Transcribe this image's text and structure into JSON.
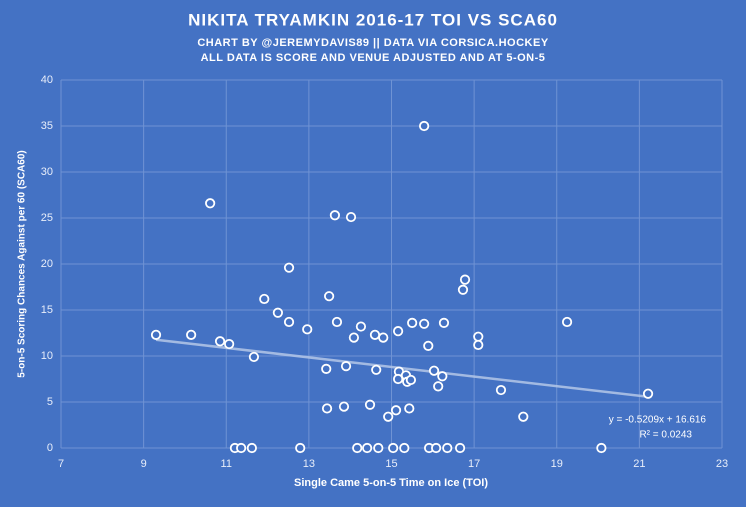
{
  "chart_data": {
    "type": "scatter",
    "title": "NIKITA  TRYAMKIN  2016-17 TOI VS SCA60",
    "subtitle": [
      "CHART BY @JEREMYDAVIS89  || DATA VIA CORSICA.HOCKEY",
      "ALL DATA IS SCORE AND VENUE ADJUSTED AND AT 5-ON-5"
    ],
    "x_label": "Single Came 5-on-5 Time on Ice (TOI)",
    "y_label": "5-on-5 Scoring Chances Against per 60 (SCA60)",
    "xlim": [
      7,
      23
    ],
    "xticks": [
      7,
      9,
      11,
      13,
      15,
      17,
      19,
      21,
      23
    ],
    "ylim": [
      0,
      40
    ],
    "yticks": [
      0,
      5,
      10,
      15,
      20,
      25,
      30,
      35,
      40
    ],
    "grid": true,
    "background": "#4472c4",
    "color": "#ffffff",
    "x": [
      9.3,
      10.15,
      10.61,
      10.85,
      11.07,
      11.67,
      11.21,
      11.36,
      11.62,
      11.92,
      12.25,
      12.52,
      12.52,
      12.79,
      12.96,
      13.42,
      13.44,
      13.49,
      13.63,
      13.68,
      13.85,
      13.9,
      14.02,
      14.09,
      14.17,
      14.26,
      14.41,
      14.48,
      14.6,
      14.63,
      14.68,
      14.8,
      14.92,
      15.04,
      15.11,
      15.16,
      15.18,
      15.16,
      15.31,
      15.35,
      15.38,
      15.43,
      15.5,
      15.47,
      15.79,
      15.79,
      15.89,
      15.91,
      16.03,
      16.08,
      16.13,
      16.23,
      16.27,
      16.35,
      16.66,
      16.73,
      16.78,
      17.1,
      17.1,
      17.65,
      18.19,
      19.25,
      20.08,
      21.21
    ],
    "values": [
      12.3,
      12.3,
      26.6,
      11.6,
      11.3,
      9.9,
      0,
      0,
      0,
      16.2,
      14.7,
      19.6,
      13.7,
      0,
      12.9,
      8.6,
      4.3,
      16.5,
      25.3,
      13.7,
      4.5,
      8.9,
      25.1,
      12.0,
      0,
      13.2,
      0,
      4.7,
      12.3,
      8.5,
      0,
      12.0,
      3.4,
      0,
      4.1,
      12.7,
      8.3,
      7.5,
      0,
      7.9,
      7.2,
      4.3,
      13.6,
      7.4,
      35.0,
      13.5,
      11.1,
      0,
      8.4,
      0,
      6.7,
      7.8,
      13.6,
      0,
      0,
      17.2,
      18.3,
      12.1,
      11.2,
      6.3,
      3.4,
      13.7,
      0,
      5.9
    ],
    "trendline": {
      "slope": -0.5209,
      "intercept": 16.616,
      "label": "y = -0.5209x + 16.616",
      "r2_label": "R² = 0.0243",
      "color": "#b4c7e7"
    }
  }
}
